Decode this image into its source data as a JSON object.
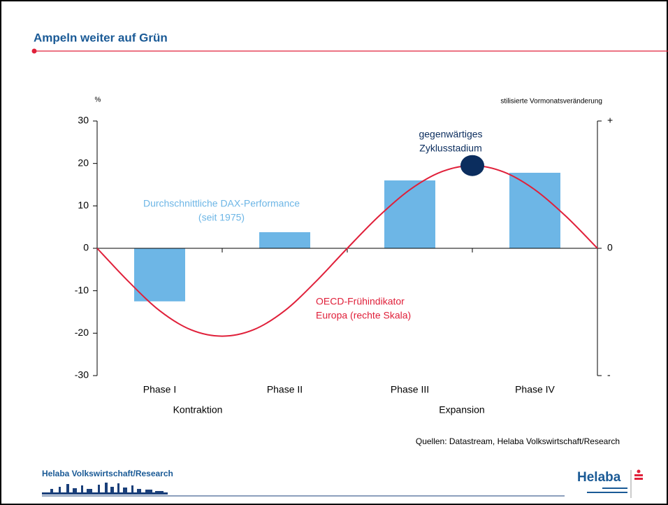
{
  "header": {
    "title": "Ampeln weiter auf Grün"
  },
  "chart_data": {
    "type": "bar",
    "categories": [
      "Phase I",
      "Phase II",
      "Phase III",
      "Phase IV"
    ],
    "category_groups": [
      "Kontraktion",
      "Expansion"
    ],
    "ylabel": "%",
    "y2label": "stilisierte Vormonatsveränderung",
    "ylim": [
      -30,
      30
    ],
    "yticks": [
      -30,
      -20,
      -10,
      0,
      10,
      20,
      30
    ],
    "y2lim": [
      -1,
      1
    ],
    "y2ticks": [
      {
        "value": -1,
        "label": "-"
      },
      0,
      {
        "value": 1,
        "label": "+"
      }
    ],
    "xlim": [
      0,
      4
    ],
    "series": [
      {
        "type": "bar",
        "label": [
          "Durchschnittliche DAX-Performance",
          "(seit 1975)"
        ],
        "color": "#6db6e6",
        "values": [
          -12.5,
          3.8,
          16,
          17.8
        ]
      },
      {
        "type": "line",
        "axis": "y2",
        "label": [
          "OECD-Frühindikator",
          "Europa (rechte Skala)"
        ],
        "color": "#e0203a",
        "x": [
          0,
          0.25,
          0.5,
          0.75,
          1,
          1.25,
          1.5,
          1.75,
          2,
          2.25,
          2.5,
          2.75,
          3,
          3.25,
          3.5,
          3.75,
          4
        ],
        "values": [
          0,
          -0.26,
          -0.49,
          -0.64,
          -0.69,
          -0.64,
          -0.49,
          -0.26,
          0,
          0.25,
          0.46,
          0.6,
          0.65,
          0.6,
          0.46,
          0.25,
          0
        ]
      }
    ],
    "current_stage": {
      "label": [
        "gegenwärtiges",
        "Zyklusstadium"
      ],
      "x": 3,
      "value": 0.65,
      "color": "#0b2d5e"
    }
  },
  "source": "Quellen: Datastream, Helaba Volkswirtschaft/Research",
  "footer": {
    "department": "Helaba Volkswirtschaft/Research",
    "logo": "Helaba"
  }
}
